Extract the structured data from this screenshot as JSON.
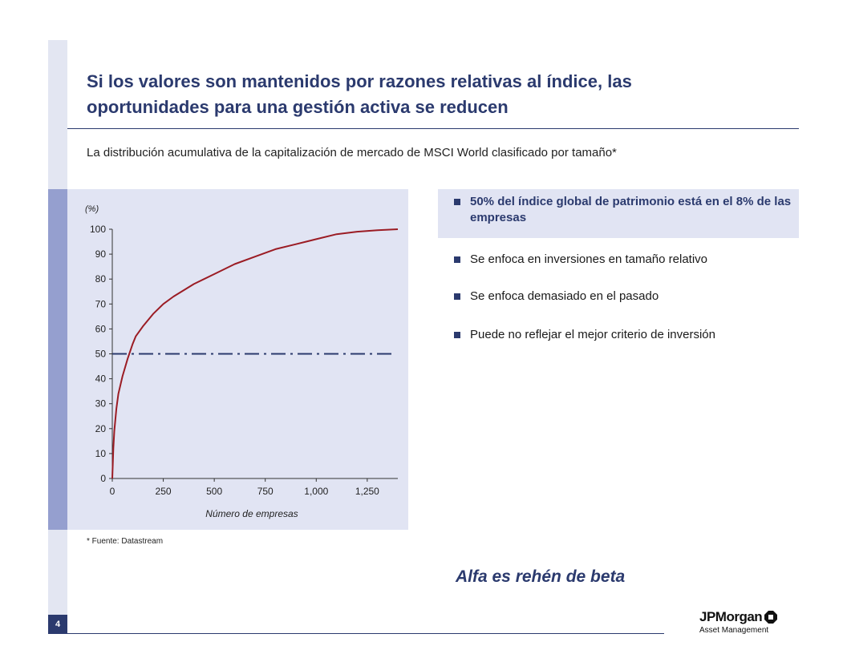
{
  "page_number": "4",
  "title_line1": "Si los valores son mantenidos por razones relativas al índice, las",
  "title_line2": "oportunidades para una gestión activa se reducen",
  "subtitle": "La distribución acumulativa de la capitalización de mercado de MSCI World clasificado por tamaño*",
  "source_note": "*  Fuente: Datastream",
  "bullets": [
    {
      "text": "50% del índice global de patrimonio está en el 8% de las empresas",
      "highlight": true
    },
    {
      "text": "Se enfoca en inversiones en tamaño relativo",
      "highlight": false
    },
    {
      "text": "Se enfoca demasiado en el pasado",
      "highlight": false
    },
    {
      "text": "Puede no reflejar el mejor criterio de inversión",
      "highlight": false
    }
  ],
  "tagline": "Alfa es rehén de beta",
  "logo": {
    "name": "JPMorgan",
    "sub": "Asset Management"
  },
  "colors": {
    "navy": "#2b3a6e",
    "curve": "#9b1c24",
    "panel": "#e1e4f3"
  },
  "chart_data": {
    "type": "line",
    "title": "",
    "xlabel": "Número de empresas",
    "ylabel": "(%)",
    "xlim": [
      0,
      1400
    ],
    "ylim": [
      0,
      100
    ],
    "x_ticks": [
      0,
      250,
      500,
      750,
      1000,
      1250
    ],
    "x_tick_labels": [
      "0",
      "250",
      "500",
      "750",
      "1,000",
      "1,250"
    ],
    "y_ticks": [
      0,
      10,
      20,
      30,
      40,
      50,
      60,
      70,
      80,
      90,
      100
    ],
    "reference_line": {
      "y": 50,
      "style": "dash-dot"
    },
    "series": [
      {
        "x": [
          0,
          5,
          10,
          20,
          30,
          50,
          75,
          100,
          115,
          150,
          200,
          250,
          300,
          400,
          500,
          600,
          700,
          800,
          900,
          1000,
          1100,
          1200,
          1300,
          1400
        ],
        "y": [
          0,
          12,
          19,
          28,
          34,
          41,
          48,
          54,
          57,
          61,
          66,
          70,
          73,
          78,
          82,
          86,
          89,
          92,
          94,
          96,
          98,
          99,
          99.6,
          100
        ]
      }
    ],
    "grid": false
  }
}
